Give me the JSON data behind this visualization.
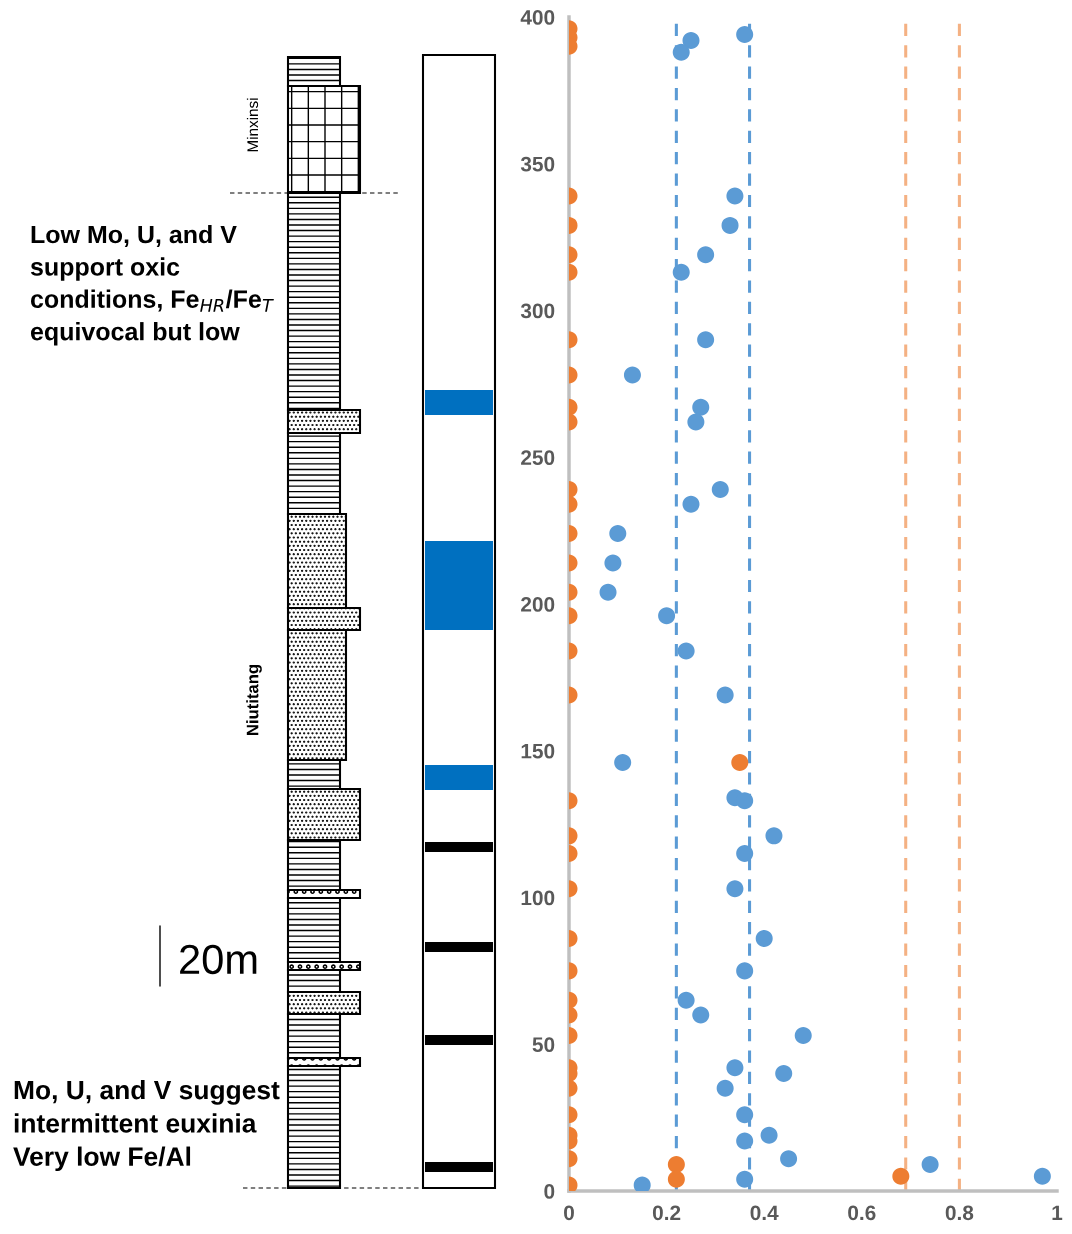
{
  "chart_data": {
    "type": "scatter",
    "marker": "circle",
    "grid": false,
    "xlim": [
      0,
      1
    ],
    "xticks": [
      0,
      0.2,
      0.4,
      0.6,
      0.8,
      1
    ],
    "ylim": [
      0,
      400
    ],
    "yticks": [
      0,
      50,
      100,
      150,
      200,
      250,
      300,
      350,
      400
    ],
    "series": [
      {
        "color": "#5b9bd5",
        "x": [
          0.25,
          0.23,
          0.36,
          0.34,
          0.33,
          0.28,
          0.23,
          0.28,
          0.13,
          0.27,
          0.26,
          0.31,
          0.25,
          0.1,
          0.09,
          0.08,
          0.2,
          0.24,
          0.32,
          0.11,
          0.34,
          0.36,
          0.42,
          0.36,
          0.34,
          0.4,
          0.36,
          0.24,
          0.27,
          0.48,
          0.34,
          0.44,
          0.32,
          0.36,
          0.41,
          0.36,
          0.45,
          0.74,
          0.97,
          0.36,
          0.15
        ],
        "values": [
          392,
          388,
          394,
          339,
          329,
          319,
          313,
          290,
          278,
          267,
          262,
          239,
          234,
          224,
          214,
          204,
          196,
          184,
          169,
          146,
          134,
          133,
          121,
          115,
          103,
          86,
          75,
          65,
          60,
          53,
          42,
          40,
          35,
          26,
          19,
          17,
          11,
          9,
          5,
          4,
          2
        ]
      },
      {
        "color": "#ed7d31",
        "x": [
          0,
          0,
          0,
          0,
          0,
          0,
          0,
          0,
          0,
          0,
          0,
          0,
          0,
          0,
          0,
          0,
          0,
          0,
          0,
          0.35,
          0,
          0,
          0,
          0,
          0,
          0,
          0,
          0,
          0,
          0,
          0,
          0,
          0,
          0,
          0,
          0,
          0.22,
          0.68,
          0.22,
          0
        ],
        "values": [
          396,
          393,
          390,
          339,
          329,
          319,
          313,
          290,
          278,
          267,
          262,
          239,
          234,
          224,
          214,
          204,
          196,
          184,
          169,
          146,
          133,
          121,
          115,
          103,
          86,
          75,
          65,
          60,
          53,
          42,
          40,
          35,
          26,
          19,
          17,
          11,
          9,
          5,
          4,
          2
        ]
      }
    ],
    "ref_lines": [
      {
        "axis": "x",
        "value": 0.22,
        "color": "#5b9bd5",
        "line_style": "dashed"
      },
      {
        "axis": "x",
        "value": 0.37,
        "color": "#5b9bd5",
        "line_style": "dashed"
      },
      {
        "axis": "x",
        "value": 0.69,
        "color": "#f4b183",
        "line_style": "dashed"
      },
      {
        "axis": "x",
        "value": 0.8,
        "color": "#f4b183",
        "line_style": "dashed"
      }
    ],
    "annotations": [
      "Low Mo, U, and V\nsupport oxic\nconditions, Fe$_{HR}$/Fe$_{T}$\nequivocal but low",
      "Mo, U, and V suggest\nintermittent euxinia\nVery low Fe/Al",
      "20m",
      "Minxinsi",
      "Niutitang"
    ]
  }
}
